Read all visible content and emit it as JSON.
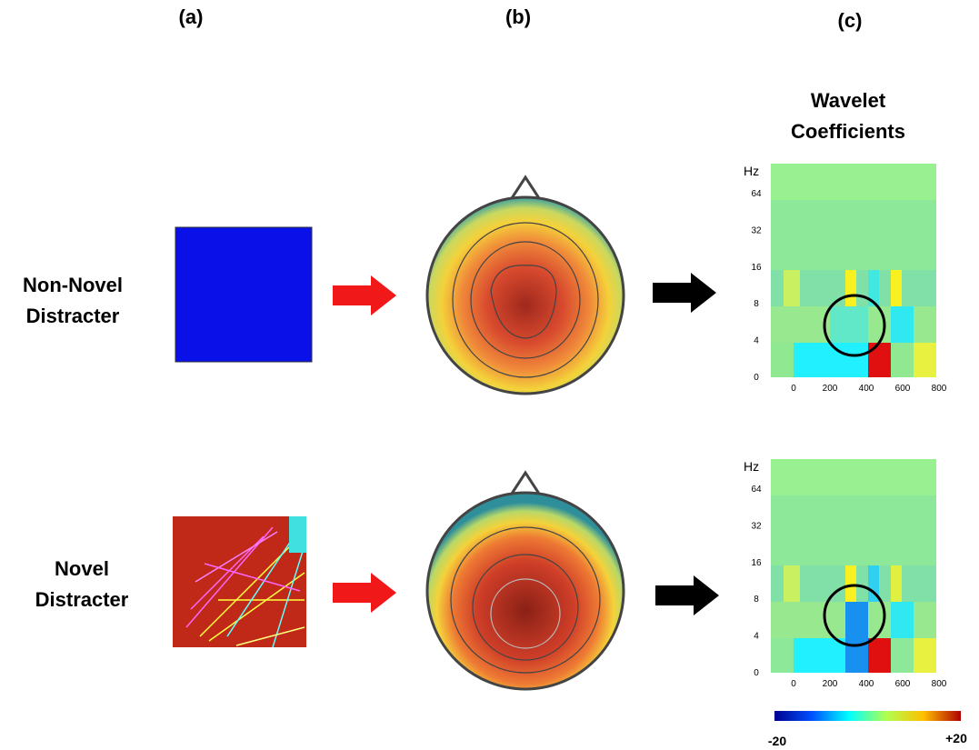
{
  "panel_labels": [
    "(a)",
    "(b)",
    "(c)"
  ],
  "column_title": [
    "Wavelet",
    "Coefficients"
  ],
  "rows": [
    {
      "label": [
        "Non-Novel",
        "Distracter"
      ]
    },
    {
      "label": [
        "Novel",
        "Distracter"
      ]
    }
  ],
  "heatmaps": [
    {
      "y_axis_label": "Hz",
      "y_ticks": [
        "64",
        "32",
        "16",
        "8",
        "4",
        "0"
      ],
      "x_ticks": [
        "0",
        "200",
        "400",
        "600",
        "800"
      ]
    },
    {
      "y_axis_label": "Hz",
      "y_ticks": [
        "64",
        "32",
        "16",
        "8",
        "4",
        "0"
      ],
      "x_ticks": [
        "0",
        "200",
        "400",
        "600",
        "800"
      ]
    }
  ],
  "colorbar": {
    "min_label": "-20",
    "max_label": "+20"
  }
}
